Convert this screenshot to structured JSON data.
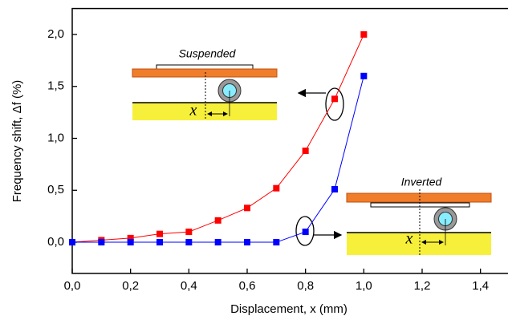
{
  "chart_data": {
    "type": "line",
    "x_label": "Displacement, x (mm)",
    "y_label": "Frequency shift, Δf (%)",
    "x": [
      0,
      0.1,
      0.2,
      0.3,
      0.4,
      0.5,
      0.6,
      0.7,
      0.8,
      0.9,
      1.0
    ],
    "series": [
      {
        "color": "#ff0000",
        "values": [
          0,
          0.02,
          0.04,
          0.08,
          0.1,
          0.21,
          0.33,
          0.52,
          0.88,
          1.38,
          2.0
        ]
      },
      {
        "color": "#0000ff",
        "values": [
          0,
          0,
          0,
          0,
          0,
          0,
          0,
          0,
          0.1,
          0.51,
          1.6
        ]
      }
    ],
    "xlim": [
      0,
      1.5
    ],
    "ylim": [
      -0.3,
      2.25
    ],
    "xticks": [
      {
        "value": 0,
        "label": "0,0"
      },
      {
        "value": 0.2,
        "label": "0,2"
      },
      {
        "value": 0.4,
        "label": "0,4"
      },
      {
        "value": 0.6,
        "label": "0,6"
      },
      {
        "value": 0.8,
        "label": "0,8"
      },
      {
        "value": 1.0,
        "label": "1,0"
      },
      {
        "value": 1.2,
        "label": "1,2"
      },
      {
        "value": 1.4,
        "label": "1,4"
      }
    ],
    "yticks": [
      {
        "value": 0,
        "label": "0,0"
      },
      {
        "value": 0.5,
        "label": "0,5"
      },
      {
        "value": 1.0,
        "label": "1,0"
      },
      {
        "value": 1.5,
        "label": "1,5"
      },
      {
        "value": 2.0,
        "label": "2,0"
      }
    ],
    "annotations": [
      "Suspended",
      "Inverted",
      "x",
      "x"
    ]
  }
}
